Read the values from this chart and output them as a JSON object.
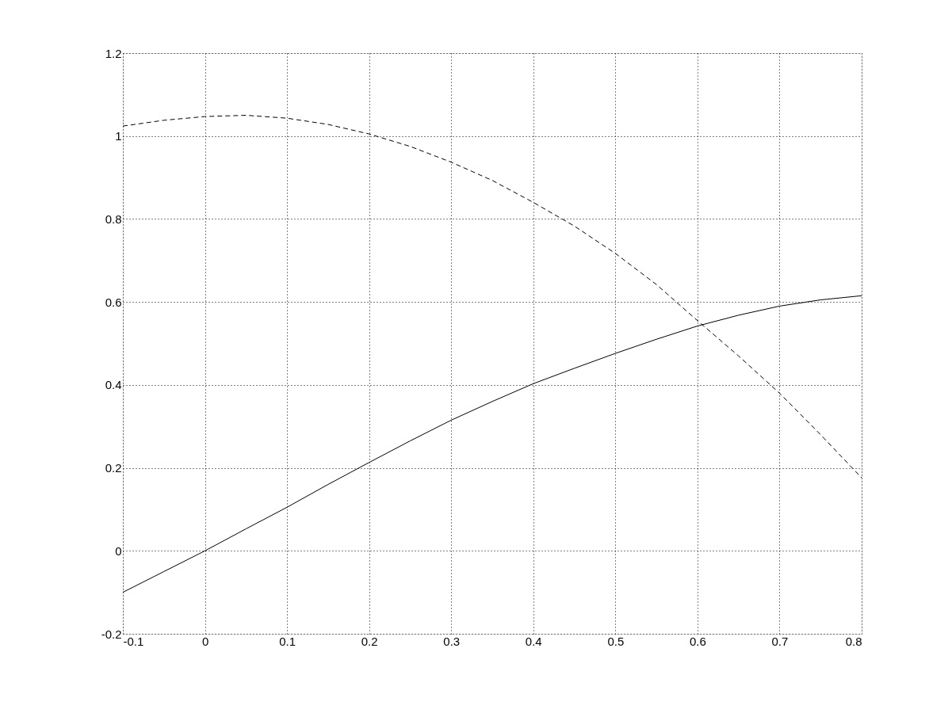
{
  "chart_data": {
    "type": "line",
    "x": [
      -0.1,
      -0.05,
      0,
      0.05,
      0.1,
      0.15,
      0.2,
      0.25,
      0.3,
      0.35,
      0.4,
      0.45,
      0.5,
      0.55,
      0.6,
      0.65,
      0.7,
      0.75,
      0.8
    ],
    "series": [
      {
        "color": "#000000",
        "line_style": "solid",
        "values": [
          -0.1,
          -0.05,
          0.0,
          0.053,
          0.105,
          0.16,
          0.213,
          0.265,
          0.315,
          0.36,
          0.403,
          0.44,
          0.476,
          0.51,
          0.542,
          0.568,
          0.59,
          0.605,
          0.615
        ]
      },
      {
        "color": "#000000",
        "line_style": "dashed",
        "values": [
          1.024,
          1.038,
          1.047,
          1.05,
          1.043,
          1.028,
          1.005,
          0.975,
          0.937,
          0.893,
          0.84,
          0.783,
          0.717,
          0.642,
          0.555,
          0.47,
          0.38,
          0.28,
          0.176
        ]
      }
    ],
    "xlim": [
      -0.1,
      0.8
    ],
    "xticks": [
      -0.1,
      0,
      0.1,
      0.2,
      0.3,
      0.4,
      0.5,
      0.6,
      0.7,
      0.8
    ],
    "ylim": [
      -0.2,
      1.2
    ],
    "yticks": [
      -0.2,
      0,
      0.2,
      0.4,
      0.6,
      0.8,
      1,
      1.2
    ],
    "grid": true,
    "marker": "none"
  }
}
